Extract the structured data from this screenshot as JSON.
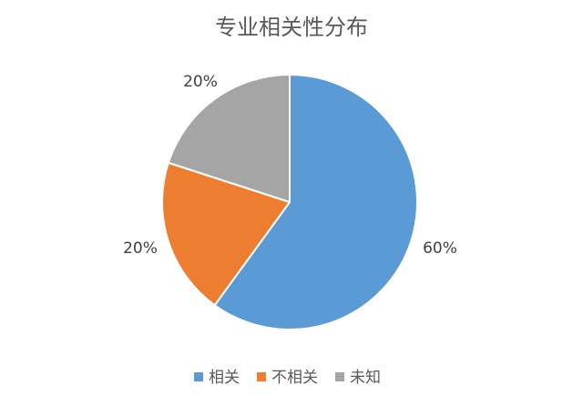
{
  "chart_data": {
    "type": "pie",
    "title": "专业相关性分布",
    "categories": [
      "相关",
      "不相关",
      "未知"
    ],
    "values": [
      60,
      20,
      20
    ],
    "data_labels": [
      "60%",
      "20%",
      "20%"
    ],
    "colors": [
      "#5b9bd5",
      "#ed7d31",
      "#a5a5a5"
    ],
    "start_angle": "12 o'clock",
    "direction": "clockwise",
    "legend_position": "bottom"
  }
}
